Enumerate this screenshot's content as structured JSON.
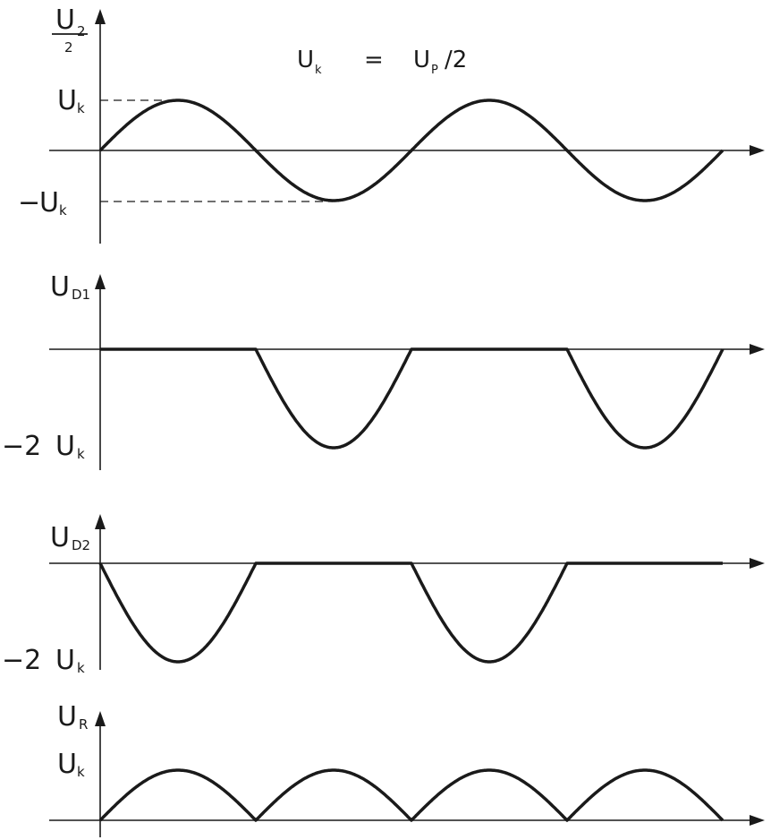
{
  "title": {
    "lhs_main": "U",
    "lhs_sub": "k",
    "eq": "=",
    "rhs_main": "U",
    "rhs_sub": "P",
    "rhs_tail": "/2"
  },
  "panels": [
    {
      "id": "u2",
      "ylabel": {
        "main": "U",
        "sub": "2",
        "denominator": "2"
      },
      "ticks": [
        {
          "prefix": "",
          "main": "U",
          "sub": "k",
          "level": 1
        },
        {
          "prefix": "−",
          "main": "U",
          "sub": "k",
          "level": -1
        }
      ],
      "waveform": "sine"
    },
    {
      "id": "ud1",
      "ylabel": {
        "main": "U",
        "sub": "D1"
      },
      "ticks": [
        {
          "prefix": "−2",
          "main": "U",
          "sub": "k",
          "level": -2
        }
      ],
      "waveform": "negative-half-odd"
    },
    {
      "id": "ud2",
      "ylabel": {
        "main": "U",
        "sub": "D2"
      },
      "ticks": [
        {
          "prefix": "−2",
          "main": "U",
          "sub": "k",
          "level": -2
        }
      ],
      "waveform": "negative-half-even"
    },
    {
      "id": "ur",
      "ylabel": {
        "main": "U",
        "sub": "R"
      },
      "ticks": [
        {
          "prefix": "",
          "main": "U",
          "sub": "k",
          "level": 1
        }
      ],
      "waveform": "full-wave-rectified"
    }
  ],
  "colors": {
    "ink": "#1a1a1a",
    "paper": "#ffffff"
  }
}
